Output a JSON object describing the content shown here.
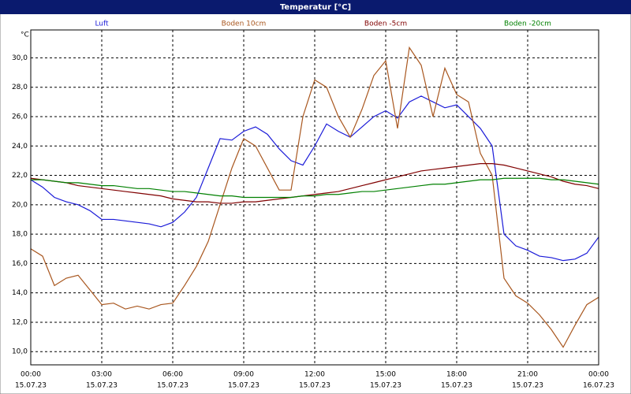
{
  "chart_data": {
    "type": "line",
    "title": "Temperatur [°C]",
    "y_label": "°C",
    "x": [
      0,
      0.5,
      1,
      1.5,
      2,
      2.5,
      3,
      3.5,
      4,
      4.5,
      5,
      5.5,
      6,
      6.5,
      7,
      7.5,
      8,
      8.5,
      9,
      9.5,
      10,
      10.5,
      11,
      11.5,
      12,
      12.5,
      13,
      13.5,
      14,
      14.5,
      15,
      15.5,
      16,
      16.5,
      17,
      17.5,
      18,
      18.5,
      19,
      19.5,
      20,
      20.5,
      21,
      21.5,
      22,
      22.5,
      23,
      23.5,
      24
    ],
    "xlim": [
      0,
      24
    ],
    "xticks": [
      {
        "value": 0,
        "label": "00:00"
      },
      {
        "value": 3,
        "label": "03:00"
      },
      {
        "value": 6,
        "label": "06:00"
      },
      {
        "value": 9,
        "label": "09:00"
      },
      {
        "value": 12,
        "label": "12:00"
      },
      {
        "value": 15,
        "label": "15:00"
      },
      {
        "value": 18,
        "label": "18:00"
      },
      {
        "value": 21,
        "label": "21:00"
      },
      {
        "value": 24,
        "label": "00:00"
      }
    ],
    "xtick_dates": [
      "15.07.23",
      "15.07.23",
      "15.07.23",
      "15.07.23",
      "15.07.23",
      "15.07.23",
      "15.07.23",
      "15.07.23",
      "16.07.23"
    ],
    "ylim": [
      9.1,
      31.9
    ],
    "yticks": [
      {
        "value": 10,
        "label": "10,0"
      },
      {
        "value": 12,
        "label": "12,0"
      },
      {
        "value": 14,
        "label": "14,0"
      },
      {
        "value": 16,
        "label": "16,0"
      },
      {
        "value": 18,
        "label": "18,0"
      },
      {
        "value": 20,
        "label": "20,0"
      },
      {
        "value": 22,
        "label": "22,0"
      },
      {
        "value": 24,
        "label": "24,0"
      },
      {
        "value": 26,
        "label": "26,0"
      },
      {
        "value": 28,
        "label": "28,0"
      },
      {
        "value": 30,
        "label": "30,0"
      }
    ],
    "grid": true,
    "series": [
      {
        "name": "Luft",
        "color": "#1a1ad8",
        "values": [
          21.7,
          21.2,
          20.5,
          20.2,
          20.0,
          19.6,
          19.0,
          19.0,
          18.9,
          18.8,
          18.7,
          18.5,
          18.8,
          19.5,
          20.5,
          22.5,
          24.5,
          24.4,
          25.0,
          25.3,
          24.8,
          23.8,
          23.0,
          22.7,
          24.0,
          25.5,
          25.0,
          24.6,
          25.3,
          26.0,
          26.4,
          25.9,
          27.0,
          27.4,
          27.0,
          26.6,
          26.8,
          26.0,
          25.2,
          24.0,
          18.0,
          17.2,
          16.9,
          16.5,
          16.4,
          16.2,
          16.3,
          16.7,
          17.8
        ]
      },
      {
        "name": "Boden 10cm",
        "color": "#a8561e",
        "values": [
          17.0,
          16.5,
          14.5,
          15.0,
          15.2,
          14.2,
          13.2,
          13.3,
          12.9,
          13.1,
          12.9,
          13.2,
          13.3,
          14.5,
          15.8,
          17.5,
          20.0,
          22.5,
          24.5,
          24.0,
          22.5,
          21.0,
          21.0,
          26.0,
          28.5,
          28.0,
          26.0,
          24.6,
          26.5,
          28.8,
          29.8,
          25.2,
          30.7,
          29.5,
          26.0,
          29.3,
          27.5,
          27.0,
          23.5,
          22.0,
          15.0,
          13.8,
          13.3,
          12.5,
          11.5,
          10.3,
          11.8,
          13.2,
          13.7
        ]
      },
      {
        "name": "Boden -5cm",
        "color": "#800000",
        "values": [
          21.8,
          21.7,
          21.6,
          21.5,
          21.3,
          21.2,
          21.1,
          21.0,
          20.9,
          20.8,
          20.7,
          20.6,
          20.4,
          20.3,
          20.2,
          20.2,
          20.1,
          20.1,
          20.2,
          20.2,
          20.3,
          20.4,
          20.5,
          20.6,
          20.7,
          20.8,
          20.9,
          21.1,
          21.3,
          21.5,
          21.7,
          21.9,
          22.1,
          22.3,
          22.4,
          22.5,
          22.6,
          22.7,
          22.8,
          22.8,
          22.7,
          22.5,
          22.3,
          22.1,
          21.9,
          21.6,
          21.4,
          21.3,
          21.1
        ]
      },
      {
        "name": "Boden -20cm",
        "color": "#008000",
        "values": [
          21.7,
          21.7,
          21.6,
          21.5,
          21.5,
          21.4,
          21.3,
          21.3,
          21.2,
          21.1,
          21.1,
          21.0,
          20.9,
          20.9,
          20.8,
          20.7,
          20.6,
          20.6,
          20.5,
          20.5,
          20.5,
          20.5,
          20.5,
          20.6,
          20.6,
          20.7,
          20.7,
          20.8,
          20.9,
          20.9,
          21.0,
          21.1,
          21.2,
          21.3,
          21.4,
          21.4,
          21.5,
          21.6,
          21.7,
          21.7,
          21.8,
          21.8,
          21.8,
          21.8,
          21.7,
          21.7,
          21.6,
          21.5,
          21.4
        ]
      }
    ]
  }
}
